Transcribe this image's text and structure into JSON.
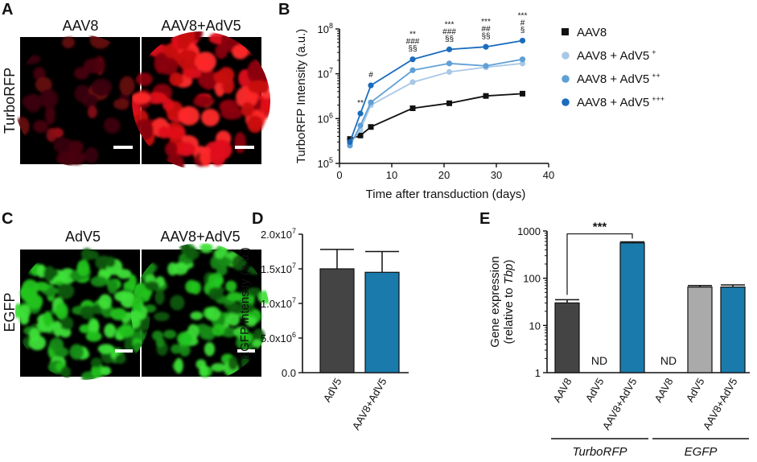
{
  "panels": {
    "A": {
      "label": "A",
      "row_label": "TurboRFP",
      "image_titles": [
        "AAV8",
        "AAV8+AdV5"
      ],
      "colors": {
        "stain": "#e0101a"
      }
    },
    "C": {
      "label": "C",
      "row_label": "EGFP",
      "image_titles": [
        "AdV5",
        "AAV8+AdV5"
      ],
      "colors": {
        "stain": "#22c41e"
      }
    }
  },
  "chart_data": [
    {
      "panel": "B",
      "type": "line",
      "ylabel": "TurboRFP Intensity (a.u.)",
      "xlabel": "Time after transduction (days)",
      "xlim": [
        0,
        40
      ],
      "xticks": [
        0,
        10,
        20,
        30,
        40
      ],
      "yscale": "log",
      "ylim": [
        100000,
        100000000
      ],
      "yticks": [
        {
          "value": 100000,
          "base": "10",
          "exp": "5"
        },
        {
          "value": 1000000,
          "base": "10",
          "exp": "6"
        },
        {
          "value": 10000000,
          "base": "10",
          "exp": "7"
        },
        {
          "value": 100000000,
          "base": "10",
          "exp": "8"
        }
      ],
      "x": [
        2,
        4,
        6,
        14,
        21,
        28,
        35
      ],
      "series": [
        {
          "name": "AAV8",
          "name_sup": "",
          "color": "#111111",
          "marker": "square",
          "values": [
            350000,
            420000,
            650000,
            1700000,
            2200000,
            3200000,
            3600000
          ]
        },
        {
          "name": "AAV8 + AdV5",
          "name_sup": "+",
          "color": "#a9c8e6",
          "marker": "circle",
          "values": [
            280000,
            560000,
            2000000,
            6500000,
            11000000,
            14000000,
            17000000
          ]
        },
        {
          "name": "AAV8 + AdV5",
          "name_sup": "++",
          "color": "#5f9fd5",
          "marker": "circle",
          "values": [
            250000,
            700000,
            2300000,
            12000000,
            17000000,
            15000000,
            21000000
          ]
        },
        {
          "name": "AAV8 + AdV5",
          "name_sup": "+++",
          "color": "#1b6cbd",
          "marker": "circle",
          "values": [
            300000,
            1300000,
            5500000,
            21000000,
            35000000,
            40000000,
            55000000
          ]
        }
      ],
      "annotations": [
        {
          "x": 4,
          "lines": [
            "**"
          ]
        },
        {
          "x": 6,
          "lines": [
            "#"
          ]
        },
        {
          "x": 14,
          "lines": [
            "**",
            "###",
            "§§"
          ]
        },
        {
          "x": 21,
          "lines": [
            "***",
            "###",
            "§§"
          ]
        },
        {
          "x": 28,
          "lines": [
            "***",
            "##",
            "§§"
          ]
        },
        {
          "x": 35,
          "lines": [
            "***",
            "#",
            "§"
          ]
        }
      ]
    },
    {
      "panel": "D",
      "type": "bar",
      "ylabel": "EGFP Intensity (a.u.)",
      "categories": [
        "AdV5",
        "AAV8+AdV5"
      ],
      "values": [
        15000000,
        14500000
      ],
      "errors": [
        2800000,
        3000000
      ],
      "colors": [
        "#444444",
        "#1a7aab"
      ],
      "ylim": [
        0,
        20000000
      ],
      "yticks": [
        {
          "value": 0,
          "label": "0.0",
          "exp": ""
        },
        {
          "value": 5000000,
          "label": "5.0x10",
          "exp": "6"
        },
        {
          "value": 10000000,
          "label": "1.0x10",
          "exp": "7"
        },
        {
          "value": 15000000,
          "label": "1.5x10",
          "exp": "7"
        },
        {
          "value": 20000000,
          "label": "2.0x10",
          "exp": "7"
        }
      ]
    },
    {
      "panel": "E",
      "type": "bar",
      "ylabel_line1": "Gene expression",
      "ylabel_line2_prefix": "(relative to ",
      "ylabel_line2_italic": "Tbp",
      "ylabel_line2_suffix": ")",
      "yscale": "log",
      "ylim": [
        1,
        1000
      ],
      "yticks": [
        {
          "value": 1,
          "label": "1"
        },
        {
          "value": 10,
          "label": "10"
        },
        {
          "value": 100,
          "label": "100"
        },
        {
          "value": 1000,
          "label": "1000"
        }
      ],
      "categories": [
        "AAV8",
        "AdV5",
        "AAV8+AdV5",
        "AAV8",
        "AdV5",
        "AAV8+AdV5"
      ],
      "values": [
        30,
        null,
        560,
        null,
        65,
        65
      ],
      "errors": [
        5,
        null,
        30,
        null,
        5,
        7
      ],
      "colors": [
        "#444444",
        "#444444",
        "#1a7aab",
        "#444444",
        "#aaaaaa",
        "#1a7aab"
      ],
      "nd_label": "ND",
      "groups": [
        {
          "label": "TurboRFP",
          "indices": [
            0,
            1,
            2
          ]
        },
        {
          "label": "EGFP",
          "indices": [
            3,
            4,
            5
          ]
        }
      ],
      "significance": {
        "from": 0,
        "to": 2,
        "label": "***"
      }
    }
  ]
}
